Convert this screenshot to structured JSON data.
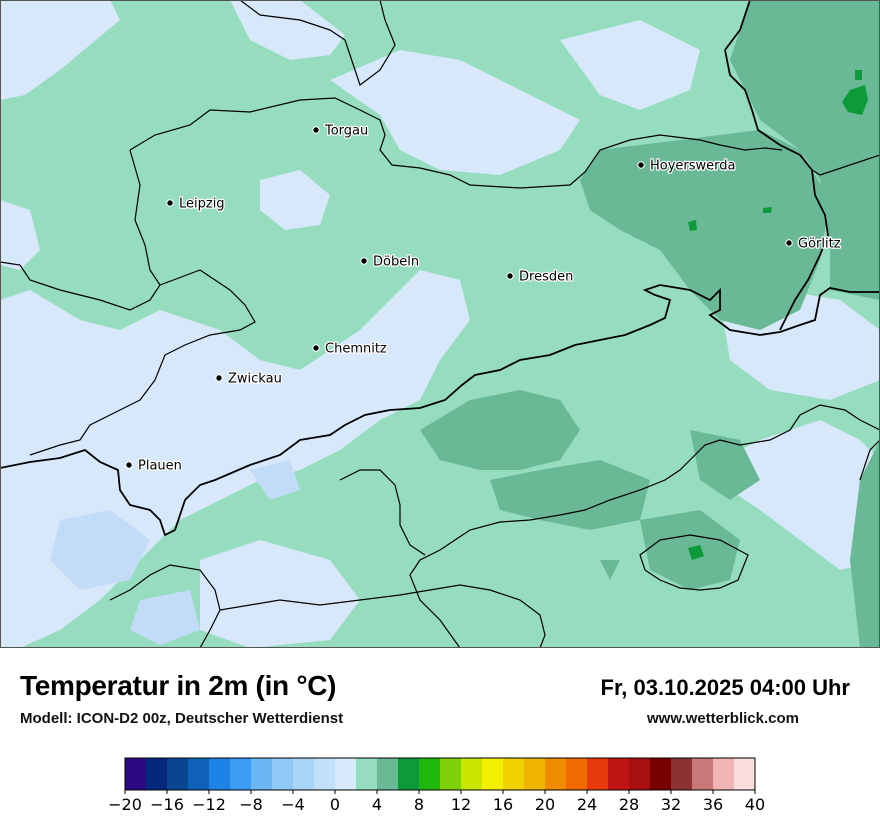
{
  "header": {
    "title": "Temperatur in 2m (in °C)",
    "subtitle": "Modell: ICON-D2 00z, Deutscher Wetterdienst",
    "datetime": "Fr, 03.10.2025 04:00 Uhr",
    "website": "www.wetterblick.com"
  },
  "cities": [
    {
      "name": "Torgau"
    },
    {
      "name": "Hoyerswerda"
    },
    {
      "name": "Leipzig"
    },
    {
      "name": "Görlitz"
    },
    {
      "name": "Döbeln"
    },
    {
      "name": "Dresden"
    },
    {
      "name": "Chemnitz"
    },
    {
      "name": "Zwickau"
    },
    {
      "name": "Plauen"
    }
  ],
  "legend": {
    "min": -20,
    "max": 40,
    "step": 2,
    "tick_labels": [
      "−20",
      "−16",
      "−12",
      "−8",
      "−4",
      "0",
      "4",
      "8",
      "12",
      "16",
      "20",
      "24",
      "28",
      "32",
      "36",
      "40"
    ],
    "colors": [
      "#2e0a82",
      "#06287c",
      "#0a4592",
      "#0f62b8",
      "#1e83e6",
      "#3a9cf2",
      "#6cb6f5",
      "#90c8f7",
      "#a8d5f8",
      "#c2e0fa",
      "#d9eafc",
      "#96dcbe",
      "#6ab996",
      "#0c9a3a",
      "#1fb80e",
      "#7fd20a",
      "#c8e600",
      "#f2f000",
      "#f0d200",
      "#f0b400",
      "#f08c00",
      "#f06a00",
      "#e83a0a",
      "#c01414",
      "#a81010",
      "#780000",
      "#8c3232",
      "#c87878",
      "#f0b4b4",
      "#fadcdc"
    ]
  },
  "map_colors": {
    "very_light_blue": "#d8e8fb",
    "light_blue": "#c2dcf8",
    "blue": "#a8cef5",
    "light_green": "#96dcbe",
    "medium_green": "#6ab996",
    "dark_green": "#0c9a3a"
  }
}
